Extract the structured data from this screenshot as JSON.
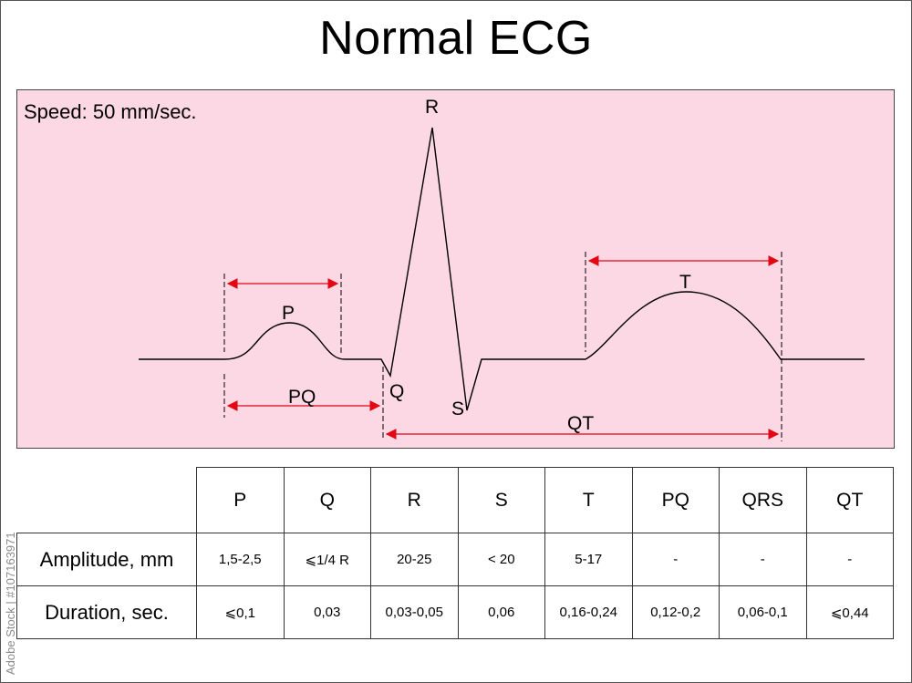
{
  "title": "Normal ECG",
  "speed_label": "Speed: 50 mm/sec.",
  "wave_labels": {
    "P": "P",
    "Q": "Q",
    "R": "R",
    "S": "S",
    "T": "T",
    "PQ": "PQ",
    "QT": "QT"
  },
  "colors": {
    "panel": "#fcd7e4",
    "arrow": "#e30613",
    "trace": "#000000"
  },
  "table": {
    "columns": [
      "P",
      "Q",
      "R",
      "S",
      "T",
      "PQ",
      "QRS",
      "QT"
    ],
    "rows": [
      {
        "label": "Amplitude, mm",
        "values": [
          "1,5-2,5",
          "⩽1/4 R",
          "20-25",
          "< 20",
          "5-17",
          "-",
          "-",
          "-"
        ]
      },
      {
        "label": "Duration, sec.",
        "values": [
          "⩽0,1",
          "0,03",
          "0,03-0,05",
          "0,06",
          "0,16-0,24",
          "0,12-0,2",
          "0,06-0,1",
          "⩽0,44"
        ]
      }
    ]
  },
  "watermark": "Adobe Stock | #107163971"
}
